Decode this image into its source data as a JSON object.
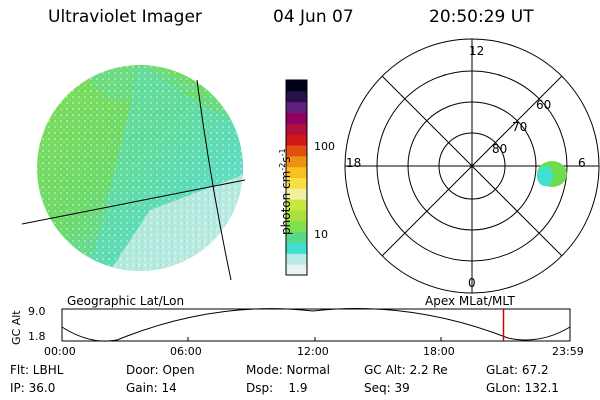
{
  "header": {
    "instrument": "Ultraviolet Imager",
    "date": "04 Jun 07",
    "time": "20:50:29 UT"
  },
  "colorbar": {
    "unit_label": "photon cm",
    "unit_exp1": "-2",
    "unit_mid": "s",
    "unit_exp2": "-1",
    "ticks": [
      "100",
      "10"
    ],
    "colors": [
      "#e8f4f4",
      "#b8eaea",
      "#40e0d0",
      "#5ad88a",
      "#80e050",
      "#a8e040",
      "#c8e840",
      "#f0f0a0",
      "#f8e040",
      "#f8c020",
      "#f09010",
      "#e05010",
      "#d01818",
      "#b01040",
      "#900060",
      "#602080",
      "#2a1048",
      "#000018"
    ]
  },
  "polar_plot": {
    "hour_labels": {
      "top": "12",
      "left": "18",
      "right": "6",
      "bottom": "0"
    },
    "lat_labels": [
      "60",
      "70",
      "80"
    ]
  },
  "panel_labels": {
    "left": "Geographic Lat/Lon",
    "right": "Apex MLat/MLT"
  },
  "altitude_plot": {
    "ylabel": "GC Alt",
    "yticks": [
      "9.0",
      "1.8"
    ],
    "xticks": [
      "00:00",
      "06:00",
      "12:00",
      "18:00",
      "23:59"
    ],
    "marker_color": "#d00000",
    "marker_time_fraction": 0.8691
  },
  "status": {
    "row1": {
      "flt": "Flt: LBHL",
      "door": "Door: Open",
      "mode": "Mode: Normal",
      "gcalt": "GC Alt: 2.2 Re",
      "glat": "GLat: 67.2"
    },
    "row2": {
      "ip": "IP: 36.0",
      "gain": "Gain: 14",
      "dsp": "Dsp:    1.9",
      "seq": "Seq: 39",
      "glon": "GLon: 132.1"
    }
  }
}
